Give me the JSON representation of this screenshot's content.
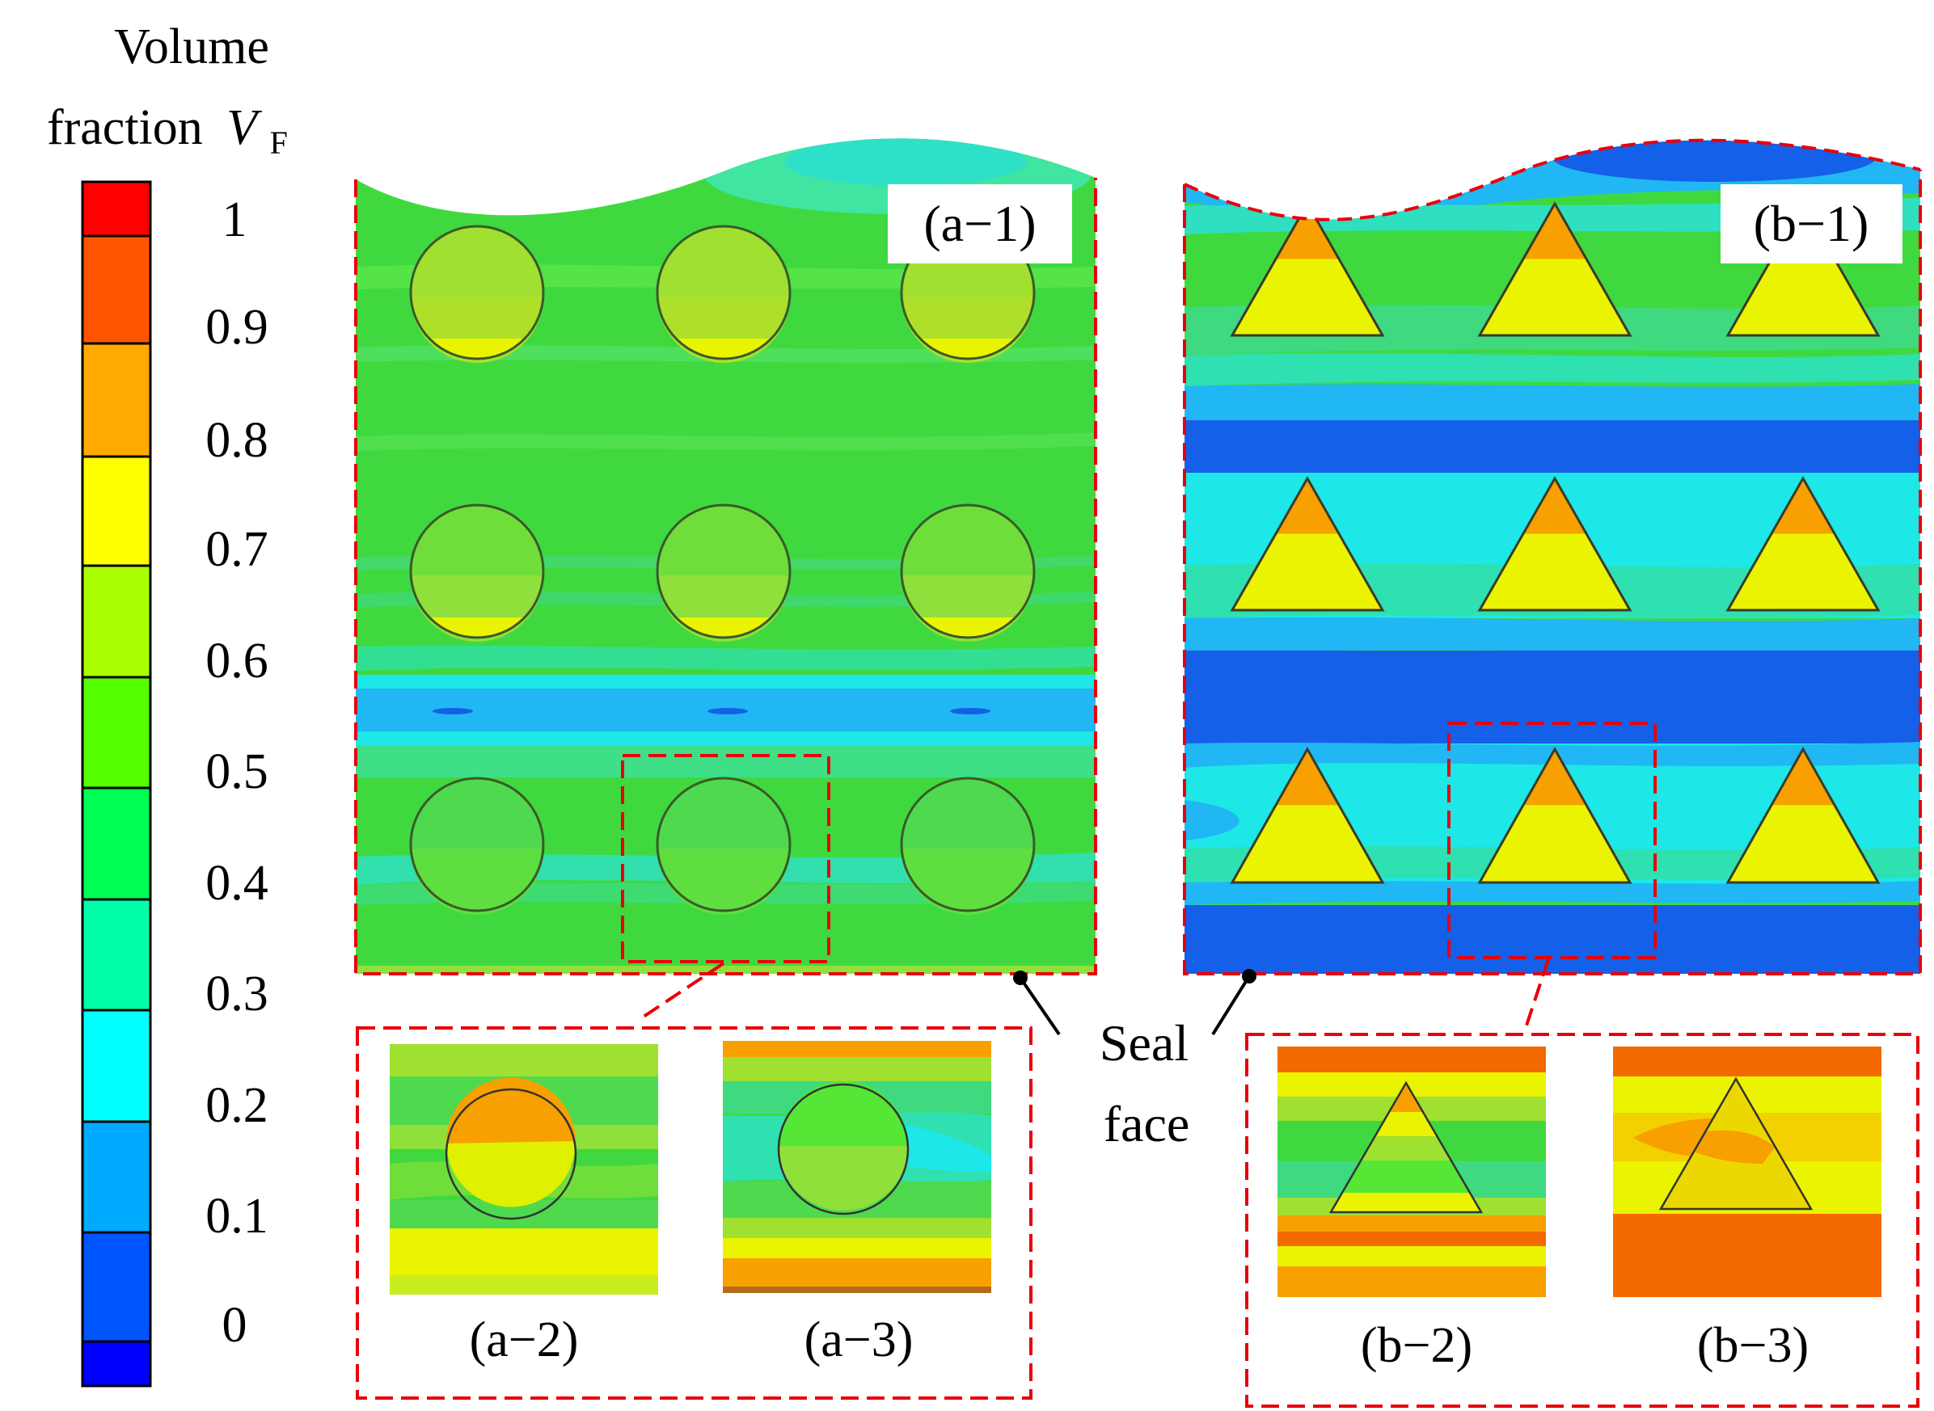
{
  "legend": {
    "title_line1": "Volume",
    "title_line2": "fraction",
    "symbol_main": "V",
    "symbol_sub": "F",
    "ticks": [
      "1",
      "0.9",
      "0.8",
      "0.7",
      "0.6",
      "0.5",
      "0.4",
      "0.3",
      "0.2",
      "0.1",
      "0"
    ],
    "colors": [
      "#ff0000",
      "#ff5500",
      "#ffaa00",
      "#ffff00",
      "#aaff00",
      "#55ff00",
      "#00ff55",
      "#00ffaa",
      "#00ffff",
      "#00aaff",
      "#0055ff",
      "#0000ff"
    ]
  },
  "panels": {
    "a1": "(a−1)",
    "a2": "(a−2)",
    "a3": "(a−3)",
    "b1": "(b−1)",
    "b2": "(b−2)",
    "b3": "(b−3)"
  },
  "annotation": {
    "line1": "Seal",
    "line2": "face"
  },
  "colors": {
    "dash": "#e8000b",
    "green": "#3fd93f",
    "light_green": "#8fe03a",
    "cyan": "#1de7e7",
    "sky": "#21b7f4",
    "blue": "#1560e8",
    "yellow": "#eaf400",
    "orange": "#f7a000",
    "dark_orange": "#f26a00"
  }
}
